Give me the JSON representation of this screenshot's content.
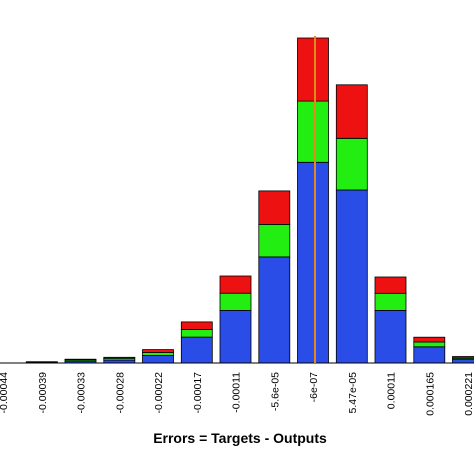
{
  "chart_data": {
    "type": "bar",
    "stacked": true,
    "categories": [
      "-0.00044",
      "-0.00039",
      "-0.00033",
      "-0.00028",
      "-0.00022",
      "-0.00017",
      "-0.00011",
      "-5.6e-05",
      "-6e-07",
      "5.47e-05",
      "0.00011",
      "0.000165",
      "0.000221"
    ],
    "series": [
      {
        "color": "#2a4de8",
        "values": [
          0,
          0.5,
          1,
          1.5,
          4,
          13.5,
          27.5,
          55.5,
          105,
          90.5,
          27.5,
          8.5,
          2
        ]
      },
      {
        "color": "#22ee11",
        "values": [
          0,
          0.2,
          0.7,
          1,
          1.5,
          4,
          9,
          17,
          32,
          27,
          9,
          2.5,
          0.6
        ]
      },
      {
        "color": "#ee1111",
        "values": [
          0,
          0,
          0.3,
          0.5,
          1.5,
          4,
          9,
          17.5,
          33,
          28,
          8.5,
          2.5,
          0.8
        ]
      }
    ],
    "xlabel": "Errors = Targets - Outputs",
    "ylabel": "",
    "title": "",
    "ylim": [
      0,
      170
    ],
    "zero_line": {
      "color": "#e08a1e"
    },
    "grid": false,
    "legend": "none"
  }
}
